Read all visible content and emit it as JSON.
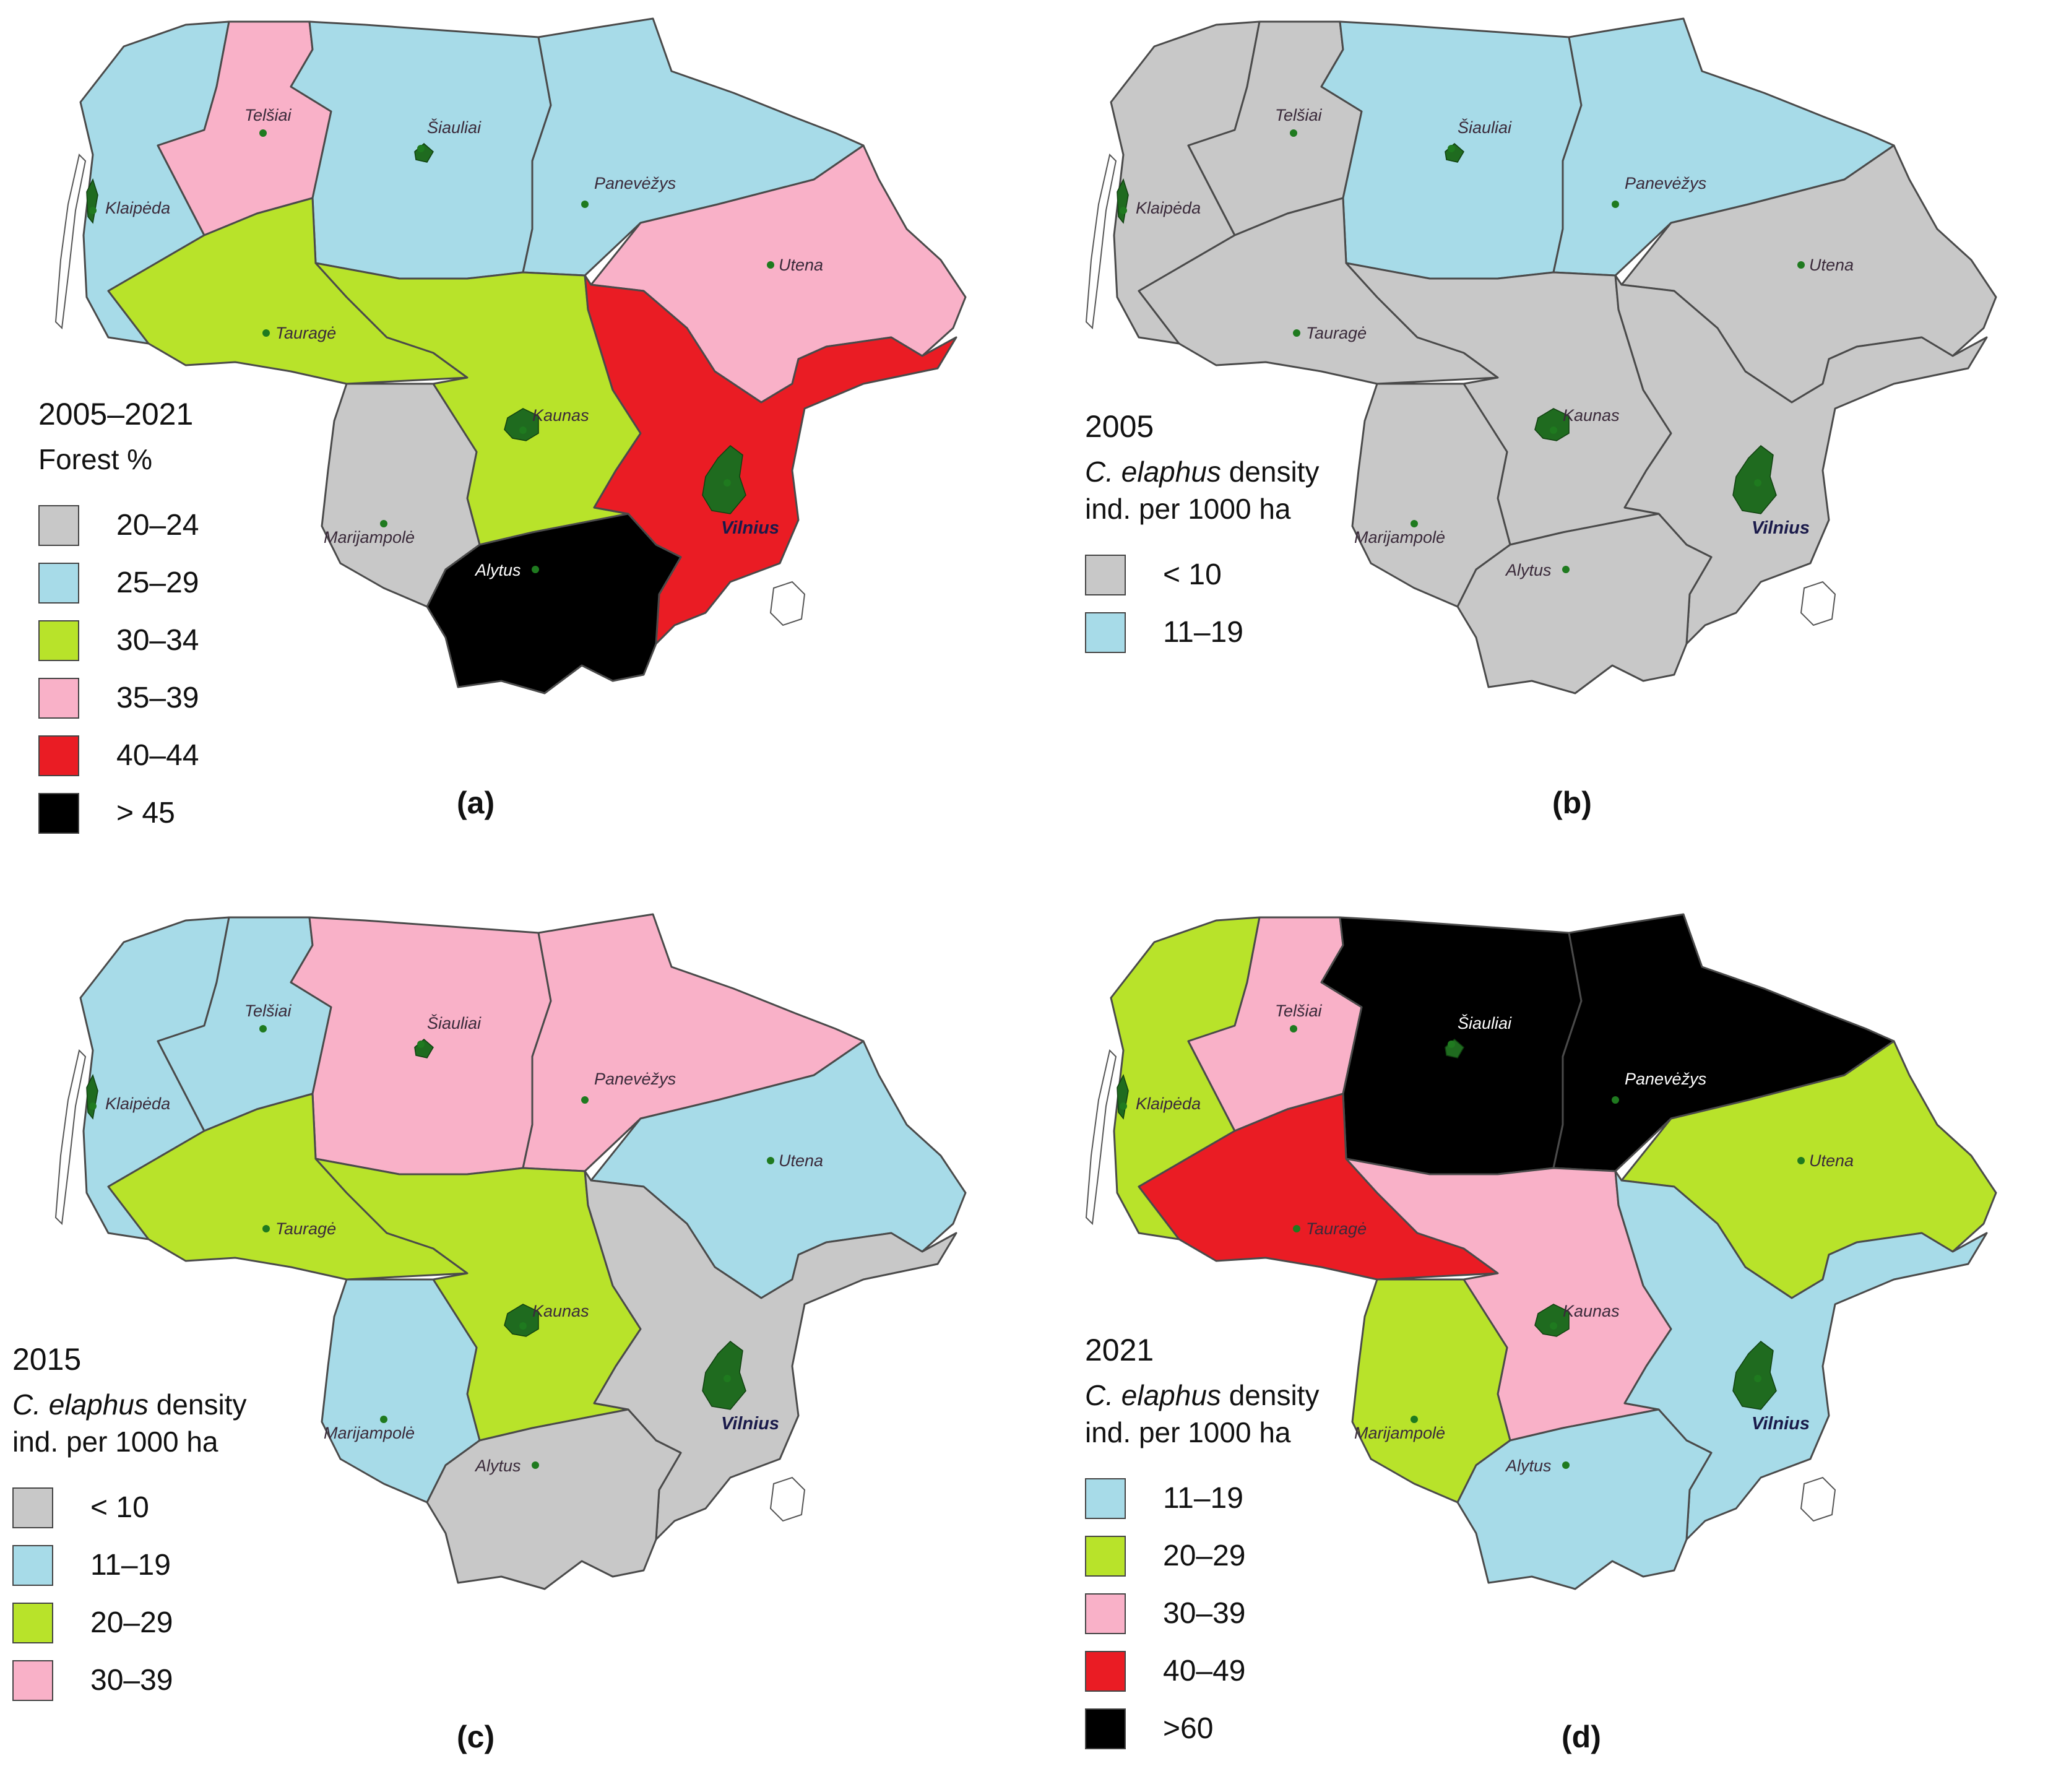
{
  "panels": [
    {
      "id": "a",
      "panel_label": "(a)",
      "legend_title": "2005–2021",
      "legend_subtitle_plain": "Forest %",
      "legend_items": [
        {
          "label": "20–24",
          "color": "#c8c8c8"
        },
        {
          "label": "25–29",
          "color": "#a7dbe8"
        },
        {
          "label": "30–34",
          "color": "#b8e32a"
        },
        {
          "label": "35–39",
          "color": "#f9b1c8"
        },
        {
          "label": "40–44",
          "color": "#ea1c24"
        },
        {
          "label": "> 45",
          "color": "#000000"
        }
      ],
      "region_classes": {
        "klaipeda": "25–29",
        "telsiai": "35–39",
        "siauliai": "25–29",
        "panevezys": "25–29",
        "taurage": "30–34",
        "kaunas": "30–34",
        "utena": "35–39",
        "vilnius": "40–44",
        "marijampole": "20–24",
        "alytus": "> 45"
      }
    },
    {
      "id": "b",
      "panel_label": "(b)",
      "legend_title": "2005",
      "legend_subtitle_italic": "C. elaphus",
      "legend_subtitle_rest": " density",
      "legend_subtitle_line2": "ind. per 1000 ha",
      "legend_items": [
        {
          "label": "< 10",
          "color": "#c8c8c8"
        },
        {
          "label": "11–19",
          "color": "#a7dbe8"
        }
      ],
      "region_classes": {
        "klaipeda": "< 10",
        "telsiai": "< 10",
        "siauliai": "11–19",
        "panevezys": "11–19",
        "taurage": "< 10",
        "kaunas": "< 10",
        "utena": "< 10",
        "vilnius": "< 10",
        "marijampole": "< 10",
        "alytus": "< 10"
      }
    },
    {
      "id": "c",
      "panel_label": "(c)",
      "legend_title": "2015",
      "legend_subtitle_italic": "C. elaphus",
      "legend_subtitle_rest": " density",
      "legend_subtitle_line2": "ind. per 1000 ha",
      "legend_items": [
        {
          "label": "< 10",
          "color": "#c8c8c8"
        },
        {
          "label": "11–19",
          "color": "#a7dbe8"
        },
        {
          "label": "20–29",
          "color": "#b8e32a"
        },
        {
          "label": "30–39",
          "color": "#f9b1c8"
        }
      ],
      "region_classes": {
        "klaipeda": "11–19",
        "telsiai": "11–19",
        "siauliai": "30–39",
        "panevezys": "30–39",
        "taurage": "20–29",
        "kaunas": "20–29",
        "utena": "11–19",
        "vilnius": "< 10",
        "marijampole": "11–19",
        "alytus": "< 10"
      }
    },
    {
      "id": "d",
      "panel_label": "(d)",
      "legend_title": "2021",
      "legend_subtitle_italic": "C. elaphus",
      "legend_subtitle_rest": " density",
      "legend_subtitle_line2": "ind. per 1000 ha",
      "legend_items": [
        {
          "label": "11–19",
          "color": "#a7dbe8"
        },
        {
          "label": "20–29",
          "color": "#b8e32a"
        },
        {
          "label": "30–39",
          "color": "#f9b1c8"
        },
        {
          "label": "40–49",
          "color": "#ea1c24"
        },
        {
          "label": ">60",
          "color": "#000000"
        }
      ],
      "region_classes": {
        "klaipeda": "20–29",
        "telsiai": "30–39",
        "siauliai": ">60",
        "panevezys": ">60",
        "taurage": "40–49",
        "kaunas": "30–39",
        "utena": "20–29",
        "vilnius": "11–19",
        "marijampole": "20–29",
        "alytus": "11–19"
      }
    }
  ],
  "city_labels": {
    "klaipeda": "Klaipėda",
    "telsiai": "Telšiai",
    "siauliai": "Šiauliai",
    "panevezys": "Panevėžys",
    "taurage": "Tauragė",
    "kaunas": "Kaunas",
    "utena": "Utena",
    "vilnius": "Vilnius",
    "marijampole": "Marijampolė",
    "alytus": "Alytus"
  }
}
